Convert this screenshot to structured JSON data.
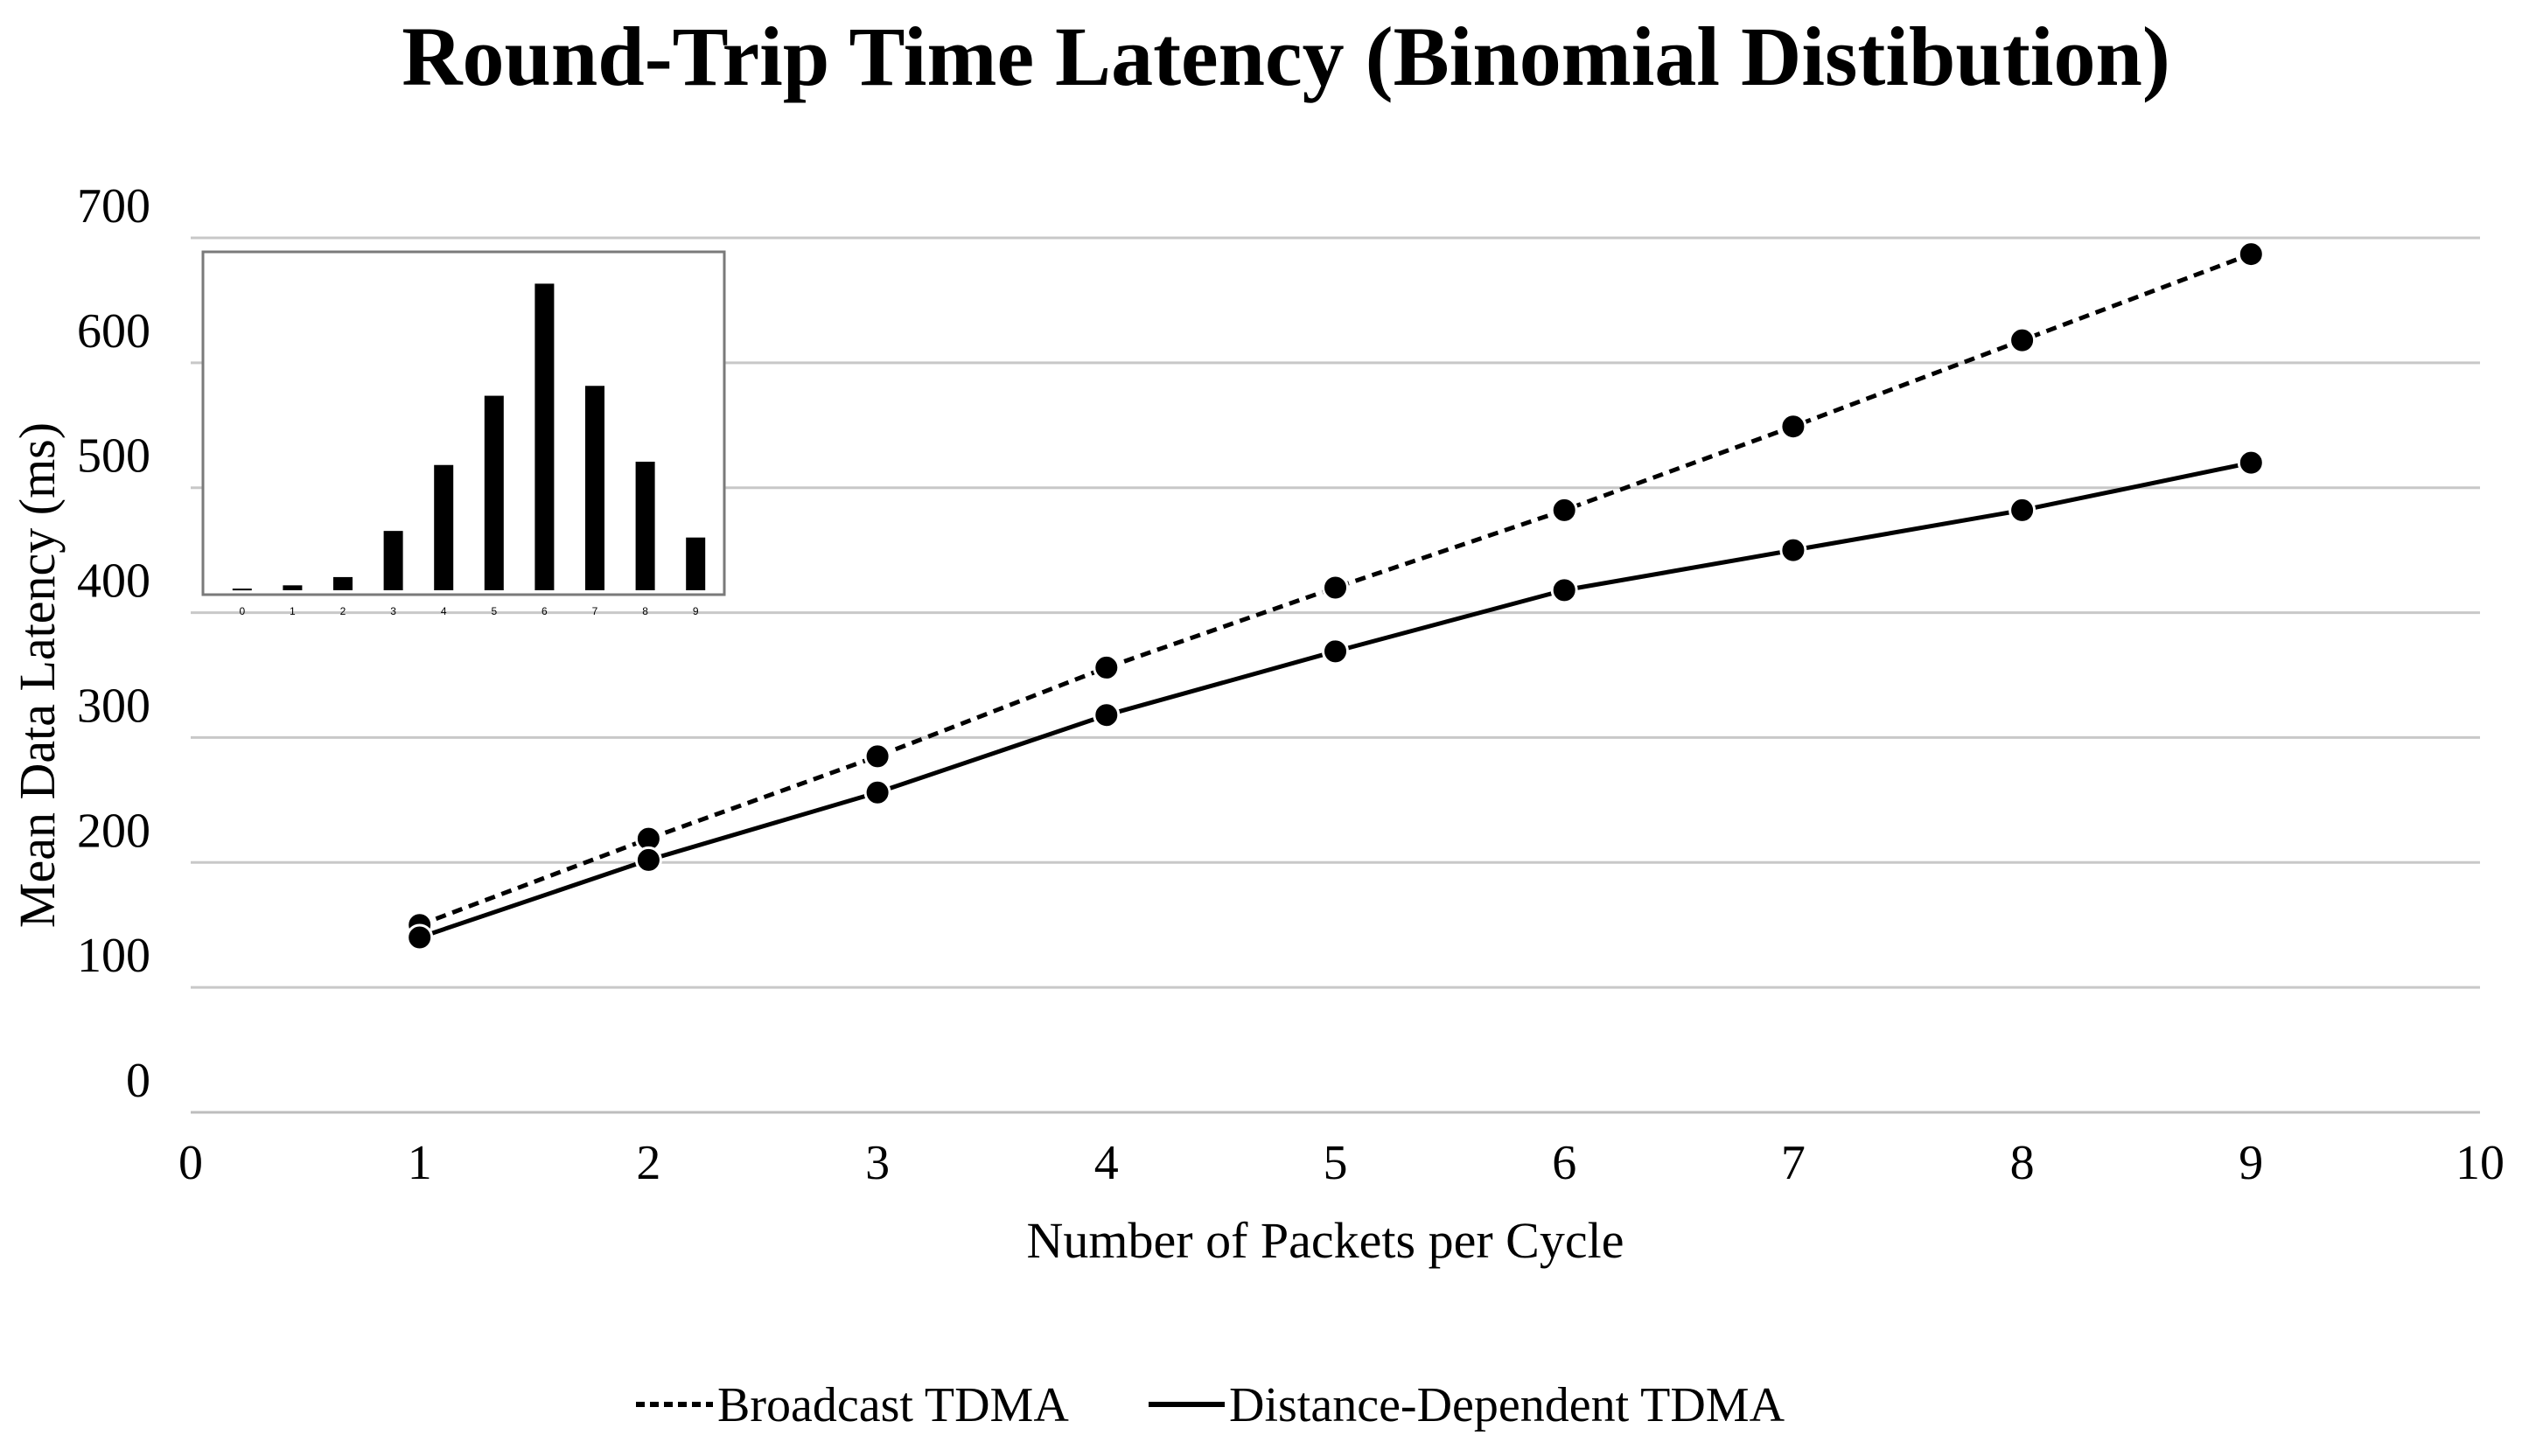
{
  "chart_data": [
    {
      "type": "line",
      "title": "Round-Trip Time Latency (Binomial Distibution)",
      "xlabel": "Number of Packets per Cycle",
      "ylabel": "Mean Data Latency (ms)",
      "xlim": [
        0,
        10
      ],
      "ylim": [
        0,
        700
      ],
      "xticks": [
        "0",
        "1",
        "2",
        "3",
        "4",
        "5",
        "6",
        "7",
        "8",
        "9",
        "10"
      ],
      "yticks": [
        "0",
        "100",
        "200",
        "300",
        "400",
        "500",
        "600",
        "700"
      ],
      "grid": "horizontal",
      "legend_position": "bottom-center",
      "x": [
        1,
        2,
        3,
        4,
        5,
        6,
        7,
        8,
        9
      ],
      "series": [
        {
          "name": "Broadcast TDMA",
          "style": "dotted",
          "values": [
            150,
            219,
            285,
            356,
            420,
            482,
            549,
            618,
            687
          ]
        },
        {
          "name": "Distance-Dependent TDMA",
          "style": "solid",
          "values": [
            140,
            202,
            256,
            318,
            369,
            418,
            450,
            482,
            520
          ]
        }
      ]
    },
    {
      "type": "bar",
      "title": "",
      "position": "inset top-left",
      "categories": [
        "0",
        "1",
        "2",
        "3",
        "4",
        "5",
        "6",
        "7",
        "8",
        "9"
      ],
      "values": [
        0.5,
        1.5,
        4,
        18,
        38,
        59,
        93,
        62,
        39,
        16
      ],
      "ylim": [
        0,
        100
      ]
    }
  ],
  "colors": {
    "line": "#000000",
    "grid": "#c8c8c8",
    "background": "#ffffff"
  }
}
